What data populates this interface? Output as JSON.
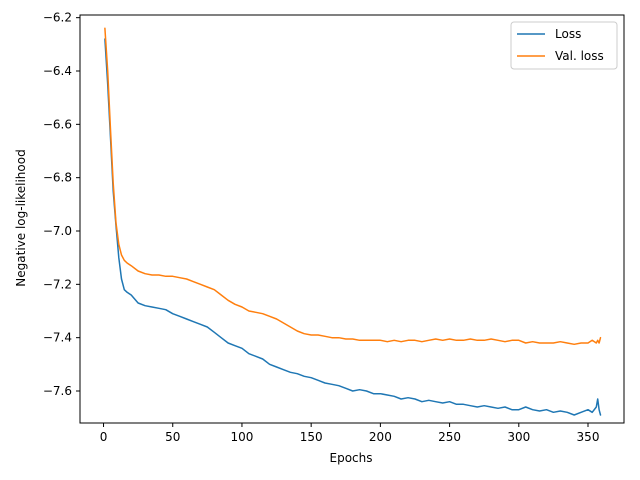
{
  "chart_data": {
    "type": "line",
    "title": "",
    "xlabel": "Epochs",
    "ylabel": "Negative log-likelihood",
    "xlim": [
      -17,
      376
    ],
    "ylim": [
      -7.72,
      -6.19
    ],
    "xticks": [
      0,
      50,
      100,
      150,
      200,
      250,
      300,
      350
    ],
    "yticks": [
      -6.2,
      -6.4,
      -6.6,
      -6.8,
      -7.0,
      -7.2,
      -7.4,
      -7.6
    ],
    "xtick_labels": [
      "0",
      "50",
      "100",
      "150",
      "200",
      "250",
      "300",
      "350"
    ],
    "ytick_labels": [
      "−6.2",
      "−6.4",
      "−6.6",
      "−6.8",
      "−7.0",
      "−7.2",
      "−7.4",
      "−7.6"
    ],
    "grid": false,
    "legend_position": "top-right",
    "series": [
      {
        "name": "Loss",
        "color": "#1f77b4",
        "x": [
          1,
          3,
          5,
          7,
          9,
          11,
          13,
          15,
          17,
          20,
          25,
          30,
          35,
          40,
          45,
          50,
          55,
          60,
          65,
          70,
          75,
          80,
          85,
          90,
          95,
          100,
          105,
          110,
          115,
          120,
          125,
          130,
          135,
          140,
          145,
          150,
          155,
          160,
          165,
          170,
          175,
          180,
          185,
          190,
          195,
          200,
          205,
          210,
          215,
          220,
          225,
          230,
          235,
          240,
          245,
          250,
          255,
          260,
          265,
          270,
          275,
          280,
          285,
          290,
          295,
          300,
          305,
          310,
          315,
          320,
          325,
          330,
          335,
          340,
          345,
          350,
          353,
          356,
          357,
          358,
          359
        ],
        "values": [
          -6.28,
          -6.45,
          -6.65,
          -6.85,
          -6.98,
          -7.1,
          -7.18,
          -7.22,
          -7.23,
          -7.24,
          -7.27,
          -7.28,
          -7.285,
          -7.29,
          -7.295,
          -7.31,
          -7.32,
          -7.33,
          -7.34,
          -7.35,
          -7.36,
          -7.38,
          -7.4,
          -7.42,
          -7.43,
          -7.44,
          -7.46,
          -7.47,
          -7.48,
          -7.5,
          -7.51,
          -7.52,
          -7.53,
          -7.535,
          -7.545,
          -7.55,
          -7.56,
          -7.57,
          -7.575,
          -7.58,
          -7.59,
          -7.6,
          -7.595,
          -7.6,
          -7.61,
          -7.61,
          -7.615,
          -7.62,
          -7.63,
          -7.625,
          -7.63,
          -7.64,
          -7.635,
          -7.64,
          -7.645,
          -7.64,
          -7.65,
          -7.65,
          -7.655,
          -7.66,
          -7.655,
          -7.66,
          -7.665,
          -7.66,
          -7.67,
          -7.67,
          -7.66,
          -7.67,
          -7.675,
          -7.67,
          -7.68,
          -7.675,
          -7.68,
          -7.69,
          -7.68,
          -7.67,
          -7.68,
          -7.66,
          -7.63,
          -7.67,
          -7.69
        ]
      },
      {
        "name": "Val. loss",
        "color": "#ff7f0e",
        "x": [
          1,
          3,
          5,
          7,
          9,
          11,
          13,
          15,
          17,
          20,
          25,
          30,
          35,
          40,
          45,
          50,
          55,
          60,
          65,
          70,
          75,
          80,
          85,
          90,
          95,
          100,
          105,
          110,
          115,
          120,
          125,
          130,
          135,
          140,
          145,
          150,
          155,
          160,
          165,
          170,
          175,
          180,
          185,
          190,
          195,
          200,
          205,
          210,
          215,
          220,
          225,
          230,
          235,
          240,
          245,
          250,
          255,
          260,
          265,
          270,
          275,
          280,
          285,
          290,
          295,
          300,
          305,
          310,
          315,
          320,
          325,
          330,
          335,
          340,
          345,
          350,
          353,
          356,
          357,
          358,
          359
        ],
        "values": [
          -6.24,
          -6.4,
          -6.62,
          -6.82,
          -6.97,
          -7.05,
          -7.09,
          -7.11,
          -7.12,
          -7.13,
          -7.15,
          -7.16,
          -7.165,
          -7.165,
          -7.17,
          -7.17,
          -7.175,
          -7.18,
          -7.19,
          -7.2,
          -7.21,
          -7.22,
          -7.24,
          -7.26,
          -7.275,
          -7.285,
          -7.3,
          -7.305,
          -7.31,
          -7.32,
          -7.33,
          -7.345,
          -7.36,
          -7.375,
          -7.385,
          -7.39,
          -7.39,
          -7.395,
          -7.4,
          -7.4,
          -7.405,
          -7.405,
          -7.41,
          -7.41,
          -7.41,
          -7.41,
          -7.415,
          -7.41,
          -7.415,
          -7.41,
          -7.41,
          -7.415,
          -7.41,
          -7.405,
          -7.41,
          -7.405,
          -7.41,
          -7.41,
          -7.405,
          -7.41,
          -7.41,
          -7.405,
          -7.41,
          -7.415,
          -7.41,
          -7.41,
          -7.42,
          -7.415,
          -7.42,
          -7.42,
          -7.42,
          -7.415,
          -7.42,
          -7.425,
          -7.42,
          -7.42,
          -7.41,
          -7.42,
          -7.41,
          -7.42,
          -7.4
        ]
      }
    ]
  }
}
